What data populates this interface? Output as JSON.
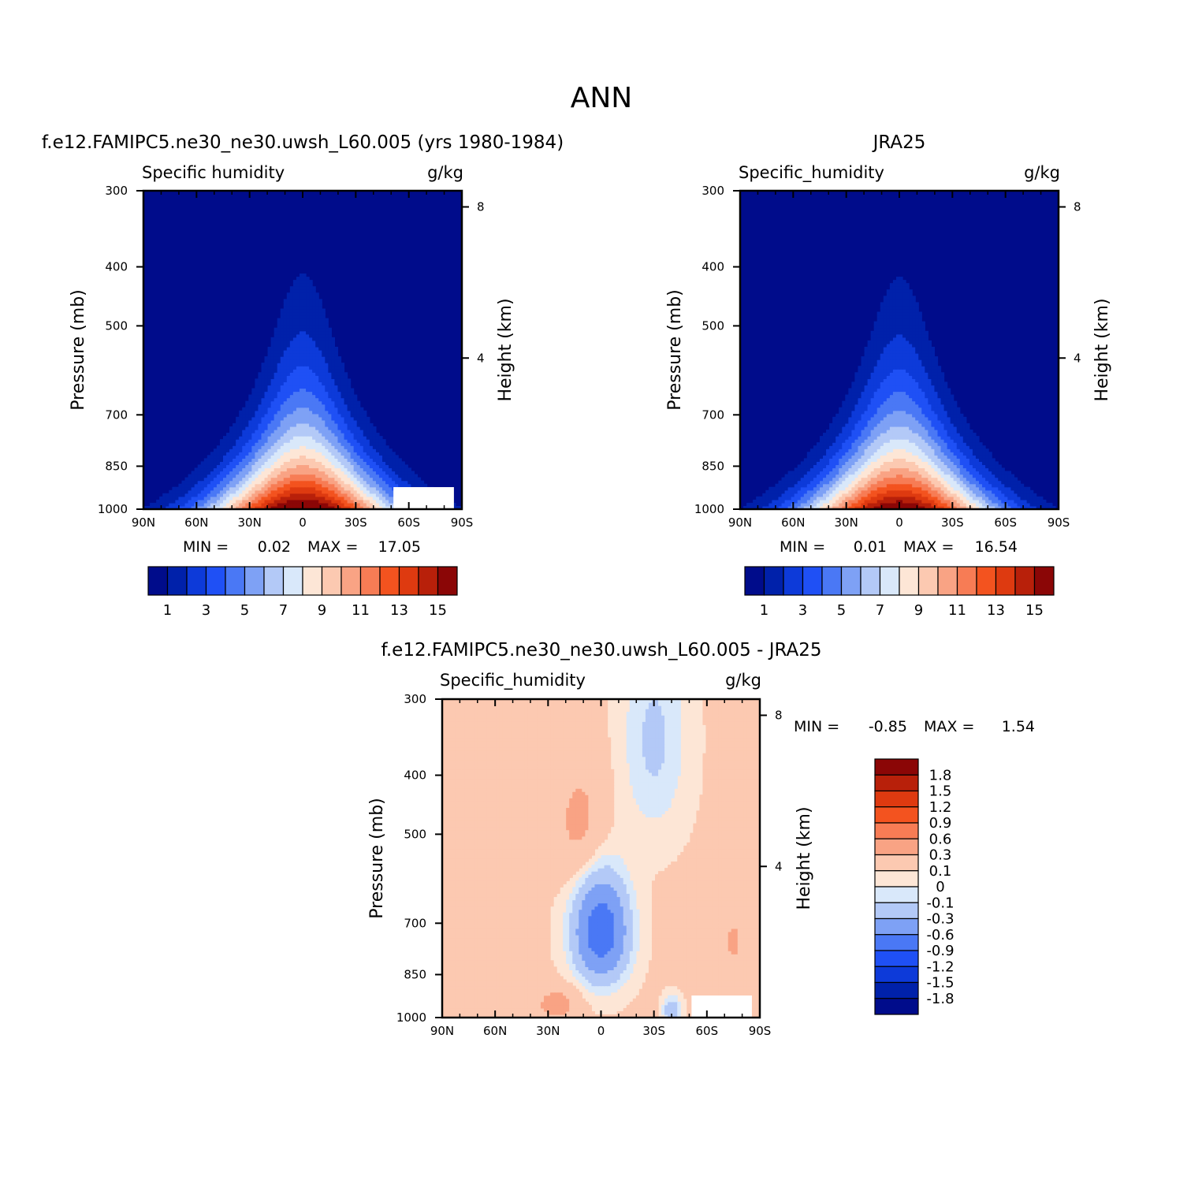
{
  "page_title": "ANN",
  "colors": {
    "abs_levels": [
      "#000c8b",
      "#0021aa",
      "#0d3ad9",
      "#1f50f5",
      "#4a78f5",
      "#7ea1f5",
      "#b3c9f7",
      "#d9e8fa",
      "#fde6d6",
      "#fcc9b1",
      "#f9a384",
      "#f77c55",
      "#f3531f",
      "#de3a10",
      "#b8200a",
      "#8b0606"
    ],
    "diff_levels": [
      "#000c8b",
      "#0021aa",
      "#0d3ad9",
      "#1f50f5",
      "#4a78f5",
      "#7ea1f5",
      "#b3c9f7",
      "#d9e8fa",
      "#fde6d6",
      "#fcc9b1",
      "#f9a384",
      "#f77c55",
      "#f3531f",
      "#de3a10",
      "#b8200a",
      "#8b0606"
    ]
  },
  "chart_data": [
    {
      "type": "heatmap",
      "id": "model",
      "title": "f.e12.FAMIPC5.ne30_ne30.uwsh_L60.005 (yrs 1980-1984)",
      "left_label": "Specific humidity",
      "right_label": "g/kg",
      "ylabel": "Pressure (mb)",
      "y2label": "Height (km)",
      "x_ticks": [
        "90N",
        "60N",
        "30N",
        "0",
        "30S",
        "60S",
        "90S"
      ],
      "y_ticks": [
        "300",
        "400",
        "500",
        "700",
        "850",
        "1000"
      ],
      "y2_ticks": [
        "8",
        "4"
      ],
      "min_label": "MIN =",
      "min_value": "0.02",
      "max_label": "MAX =",
      "max_value": "17.05",
      "colorbar_labels": [
        "1",
        "3",
        "5",
        "7",
        "9",
        "11",
        "13",
        "15"
      ],
      "peak": 17.05,
      "ylim": [
        1000,
        300
      ],
      "xlim": [
        90,
        -90
      ]
    },
    {
      "type": "heatmap",
      "id": "obs",
      "title": "JRA25",
      "left_label": "Specific_humidity",
      "right_label": "g/kg",
      "ylabel": "Pressure (mb)",
      "y2label": "Height (km)",
      "x_ticks": [
        "90N",
        "60N",
        "30N",
        "0",
        "30S",
        "60S",
        "90S"
      ],
      "y_ticks": [
        "300",
        "400",
        "500",
        "700",
        "850",
        "1000"
      ],
      "y2_ticks": [
        "8",
        "4"
      ],
      "min_label": "MIN =",
      "min_value": "0.01",
      "max_label": "MAX =",
      "max_value": "16.54",
      "colorbar_labels": [
        "1",
        "3",
        "5",
        "7",
        "9",
        "11",
        "13",
        "15"
      ],
      "peak": 16.54,
      "ylim": [
        1000,
        300
      ],
      "xlim": [
        90,
        -90
      ]
    },
    {
      "type": "heatmap",
      "id": "diff",
      "title": "f.e12.FAMIPC5.ne30_ne30.uwsh_L60.005 - JRA25",
      "left_label": "Specific_humidity",
      "right_label": "g/kg",
      "ylabel": "Pressure (mb)",
      "y2label": "Height (km)",
      "x_ticks": [
        "90N",
        "60N",
        "30N",
        "0",
        "30S",
        "60S",
        "90S"
      ],
      "y_ticks": [
        "300",
        "400",
        "500",
        "700",
        "850",
        "1000"
      ],
      "y2_ticks": [
        "8",
        "4"
      ],
      "min_label": "MIN =",
      "min_value": "-0.85",
      "max_label": "MAX =",
      "max_value": "1.54",
      "colorbar_labels": [
        "1.8",
        "1.5",
        "1.2",
        "0.9",
        "0.6",
        "0.3",
        "0.1",
        "0",
        "-0.1",
        "-0.3",
        "-0.6",
        "-0.9",
        "-1.2",
        "-1.5",
        "-1.8"
      ],
      "ylim": [
        1000,
        300
      ],
      "xlim": [
        90,
        -90
      ]
    }
  ]
}
